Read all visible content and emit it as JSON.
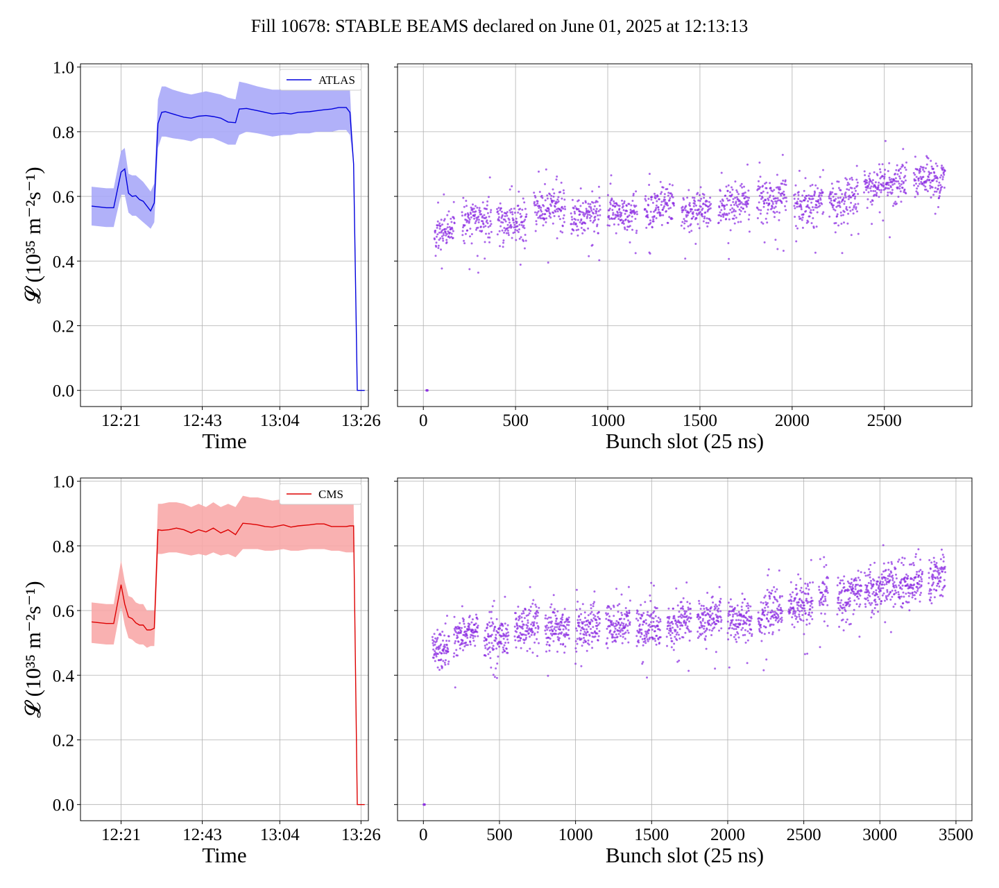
{
  "figure": {
    "title": "Fill 10678: STABLE BEAMS declared on June 01, 2025 at 12:13:13"
  },
  "chart_data": [
    {
      "type": "line",
      "panel": "top-left",
      "series": [
        {
          "name": "ATLAS",
          "color": "#0000dd",
          "band_color": "#a8a8f8",
          "x": [
            "12:13",
            "12:17",
            "12:19",
            "12:21",
            "12:22",
            "12:23",
            "12:24",
            "12:25",
            "12:26",
            "12:27",
            "12:28",
            "12:29",
            "12:30",
            "12:31",
            "12:32",
            "12:33",
            "12:35",
            "12:38",
            "12:40",
            "12:42",
            "12:44",
            "12:46",
            "12:48",
            "12:50",
            "12:52",
            "12:53",
            "12:55",
            "12:58",
            "13:00",
            "13:02",
            "13:05",
            "13:07",
            "13:09",
            "13:12",
            "13:14",
            "13:16",
            "13:18",
            "13:20",
            "13:22",
            "13:23",
            "13:24",
            "13:25",
            "13:26",
            "13:27"
          ],
          "y": [
            0.57,
            0.565,
            0.565,
            0.675,
            0.685,
            0.61,
            0.6,
            0.602,
            0.59,
            0.585,
            0.57,
            0.555,
            0.58,
            0.825,
            0.86,
            0.862,
            0.855,
            0.845,
            0.842,
            0.848,
            0.85,
            0.847,
            0.842,
            0.83,
            0.828,
            0.87,
            0.872,
            0.865,
            0.86,
            0.855,
            0.858,
            0.855,
            0.86,
            0.862,
            0.865,
            0.868,
            0.87,
            0.875,
            0.875,
            0.86,
            0.7,
            0,
            0,
            0
          ],
          "band_lo": [
            0.51,
            0.505,
            0.505,
            0.605,
            0.605,
            0.55,
            0.54,
            0.54,
            0.53,
            0.52,
            0.51,
            0.5,
            0.52,
            0.75,
            0.785,
            0.785,
            0.78,
            0.775,
            0.77,
            0.78,
            0.78,
            0.78,
            0.77,
            0.76,
            0.76,
            0.79,
            0.8,
            0.795,
            0.79,
            0.785,
            0.79,
            0.79,
            0.795,
            0.795,
            0.8,
            0.8,
            0.8,
            0.805,
            0.805,
            0.79,
            0.7,
            0,
            0,
            0
          ],
          "band_hi": [
            0.63,
            0.625,
            0.625,
            0.74,
            0.75,
            0.67,
            0.665,
            0.665,
            0.655,
            0.645,
            0.63,
            0.615,
            0.64,
            0.9,
            0.94,
            0.94,
            0.93,
            0.92,
            0.915,
            0.92,
            0.925,
            0.92,
            0.915,
            0.905,
            0.9,
            0.955,
            0.95,
            0.94,
            0.935,
            0.93,
            0.93,
            0.93,
            0.935,
            0.935,
            0.94,
            0.945,
            0.945,
            0.95,
            0.95,
            0.93,
            0.7,
            0,
            0,
            0
          ]
        }
      ],
      "xlabel": "Time",
      "x_ticks": [
        "12:21",
        "12:43",
        "13:04",
        "13:26"
      ],
      "x_range": [
        "12:10",
        "13:28"
      ],
      "ylabel": "𝓛 (10³⁵ m⁻²s⁻¹)",
      "ylim": [
        -0.05,
        1.01
      ],
      "y_ticks": [
        "0.0",
        "0.2",
        "0.4",
        "0.6",
        "0.8",
        "1.0"
      ],
      "grid": true,
      "legend": "top-right"
    },
    {
      "type": "scatter",
      "panel": "top-right",
      "color": "#8a2be2",
      "xlabel": "Bunch slot (25 ns)",
      "x_ticks": [
        "0",
        "500",
        "1000",
        "1500",
        "2000",
        "2500"
      ],
      "xlim": [
        -140,
        2975
      ],
      "ylim": [
        -0.05,
        1.01
      ],
      "grid": true,
      "pilot_bunches": [
        {
          "x": 18,
          "y": 0
        },
        {
          "x": 22,
          "y": 0
        }
      ],
      "trains": [
        {
          "x0": 60,
          "x1": 170,
          "y0": 0.48,
          "y1": 0.5
        },
        {
          "x0": 210,
          "x1": 370,
          "y0": 0.52,
          "y1": 0.54
        },
        {
          "x0": 400,
          "x1": 560,
          "y0": 0.52,
          "y1": 0.52
        },
        {
          "x0": 600,
          "x1": 770,
          "y0": 0.55,
          "y1": 0.57
        },
        {
          "x0": 800,
          "x1": 960,
          "y0": 0.53,
          "y1": 0.55
        },
        {
          "x0": 1000,
          "x1": 1160,
          "y0": 0.54,
          "y1": 0.55
        },
        {
          "x0": 1200,
          "x1": 1360,
          "y0": 0.56,
          "y1": 0.58
        },
        {
          "x0": 1400,
          "x1": 1560,
          "y0": 0.55,
          "y1": 0.56
        },
        {
          "x0": 1600,
          "x1": 1770,
          "y0": 0.56,
          "y1": 0.58
        },
        {
          "x0": 1810,
          "x1": 1970,
          "y0": 0.58,
          "y1": 0.6
        },
        {
          "x0": 2010,
          "x1": 2170,
          "y0": 0.57,
          "y1": 0.59
        },
        {
          "x0": 2200,
          "x1": 2360,
          "y0": 0.58,
          "y1": 0.6
        },
        {
          "x0": 2390,
          "x1": 2620,
          "y0": 0.62,
          "y1": 0.65
        },
        {
          "x0": 2660,
          "x1": 2760,
          "y0": 0.66,
          "y1": 0.66
        },
        {
          "x0": 2760,
          "x1": 2830,
          "y0": 0.64,
          "y1": 0.66
        }
      ],
      "spread": 0.045
    },
    {
      "type": "line",
      "panel": "bottom-left",
      "series": [
        {
          "name": "CMS",
          "color": "#dd0000",
          "band_color": "#f8a8a8",
          "x": [
            "12:13",
            "12:17",
            "12:19",
            "12:21",
            "12:22",
            "12:23",
            "12:24",
            "12:25",
            "12:26",
            "12:27",
            "12:28",
            "12:29",
            "12:30",
            "12:31",
            "12:32",
            "12:34",
            "12:36",
            "12:38",
            "12:40",
            "12:42",
            "12:44",
            "12:46",
            "12:48",
            "12:50",
            "12:52",
            "12:54",
            "12:56",
            "12:58",
            "13:00",
            "13:02",
            "13:05",
            "13:07",
            "13:09",
            "13:12",
            "13:14",
            "13:16",
            "13:18",
            "13:20",
            "13:22",
            "13:23",
            "13:24",
            "13:25",
            "13:26",
            "13:27"
          ],
          "y": [
            0.565,
            0.56,
            0.56,
            0.68,
            0.62,
            0.58,
            0.575,
            0.562,
            0.555,
            0.555,
            0.54,
            0.54,
            0.545,
            0.85,
            0.848,
            0.85,
            0.855,
            0.85,
            0.84,
            0.85,
            0.843,
            0.855,
            0.84,
            0.85,
            0.835,
            0.87,
            0.868,
            0.865,
            0.86,
            0.858,
            0.865,
            0.858,
            0.862,
            0.865,
            0.868,
            0.868,
            0.86,
            0.86,
            0.86,
            0.862,
            0.862,
            0,
            0,
            0
          ],
          "band_lo": [
            0.5,
            0.495,
            0.495,
            0.615,
            0.555,
            0.515,
            0.51,
            0.5,
            0.495,
            0.495,
            0.485,
            0.49,
            0.49,
            0.775,
            0.775,
            0.78,
            0.78,
            0.775,
            0.77,
            0.775,
            0.77,
            0.78,
            0.77,
            0.775,
            0.765,
            0.79,
            0.79,
            0.79,
            0.785,
            0.785,
            0.79,
            0.785,
            0.785,
            0.79,
            0.79,
            0.79,
            0.785,
            0.785,
            0.78,
            0.78,
            0.78,
            0,
            0,
            0
          ],
          "band_hi": [
            0.625,
            0.62,
            0.62,
            0.755,
            0.69,
            0.645,
            0.64,
            0.625,
            0.62,
            0.62,
            0.6,
            0.6,
            0.6,
            0.93,
            0.93,
            0.935,
            0.935,
            0.93,
            0.92,
            0.93,
            0.92,
            0.935,
            0.92,
            0.93,
            0.92,
            0.955,
            0.95,
            0.95,
            0.945,
            0.94,
            0.945,
            0.94,
            0.945,
            0.945,
            0.95,
            0.95,
            0.94,
            0.94,
            0.94,
            0.94,
            0.94,
            0,
            0,
            0
          ]
        }
      ],
      "xlabel": "Time",
      "x_ticks": [
        "12:21",
        "12:43",
        "13:04",
        "13:26"
      ],
      "x_range": [
        "12:10",
        "13:28"
      ],
      "ylabel": "𝓛 (10³⁵ m⁻²s⁻¹)",
      "ylim": [
        -0.05,
        1.01
      ],
      "y_ticks": [
        "0.0",
        "0.2",
        "0.4",
        "0.6",
        "0.8",
        "1.0"
      ],
      "grid": true,
      "legend": "top-right"
    },
    {
      "type": "scatter",
      "panel": "bottom-right",
      "color": "#8a2be2",
      "xlabel": "Bunch slot (25 ns)",
      "x_ticks": [
        "0",
        "500",
        "1000",
        "1500",
        "2000",
        "2500",
        "3000",
        "3500"
      ],
      "xlim": [
        -170,
        3605
      ],
      "ylim": [
        -0.05,
        1.01
      ],
      "grid": true,
      "pilot_bunches": [
        {
          "x": 3,
          "y": 0
        },
        {
          "x": 8,
          "y": 0
        }
      ],
      "trains": [
        {
          "x0": 60,
          "x1": 170,
          "y0": 0.48,
          "y1": 0.49
        },
        {
          "x0": 200,
          "x1": 360,
          "y0": 0.52,
          "y1": 0.54
        },
        {
          "x0": 400,
          "x1": 560,
          "y0": 0.51,
          "y1": 0.52
        },
        {
          "x0": 600,
          "x1": 760,
          "y0": 0.54,
          "y1": 0.56
        },
        {
          "x0": 800,
          "x1": 960,
          "y0": 0.53,
          "y1": 0.55
        },
        {
          "x0": 1000,
          "x1": 1160,
          "y0": 0.54,
          "y1": 0.55
        },
        {
          "x0": 1200,
          "x1": 1360,
          "y0": 0.55,
          "y1": 0.57
        },
        {
          "x0": 1400,
          "x1": 1560,
          "y0": 0.54,
          "y1": 0.55
        },
        {
          "x0": 1600,
          "x1": 1760,
          "y0": 0.55,
          "y1": 0.57
        },
        {
          "x0": 1800,
          "x1": 1960,
          "y0": 0.57,
          "y1": 0.59
        },
        {
          "x0": 2000,
          "x1": 2160,
          "y0": 0.57,
          "y1": 0.58
        },
        {
          "x0": 2200,
          "x1": 2360,
          "y0": 0.58,
          "y1": 0.6
        },
        {
          "x0": 2400,
          "x1": 2560,
          "y0": 0.61,
          "y1": 0.63
        },
        {
          "x0": 2600,
          "x1": 2660,
          "y0": 0.64,
          "y1": 0.66
        },
        {
          "x0": 2720,
          "x1": 2880,
          "y0": 0.64,
          "y1": 0.66
        },
        {
          "x0": 2900,
          "x1": 3010,
          "y0": 0.66,
          "y1": 0.67
        },
        {
          "x0": 3010,
          "x1": 3110,
          "y0": 0.68,
          "y1": 0.69
        },
        {
          "x0": 3120,
          "x1": 3280,
          "y0": 0.67,
          "y1": 0.7
        },
        {
          "x0": 3320,
          "x1": 3430,
          "y0": 0.69,
          "y1": 0.72
        }
      ],
      "spread": 0.048
    }
  ]
}
